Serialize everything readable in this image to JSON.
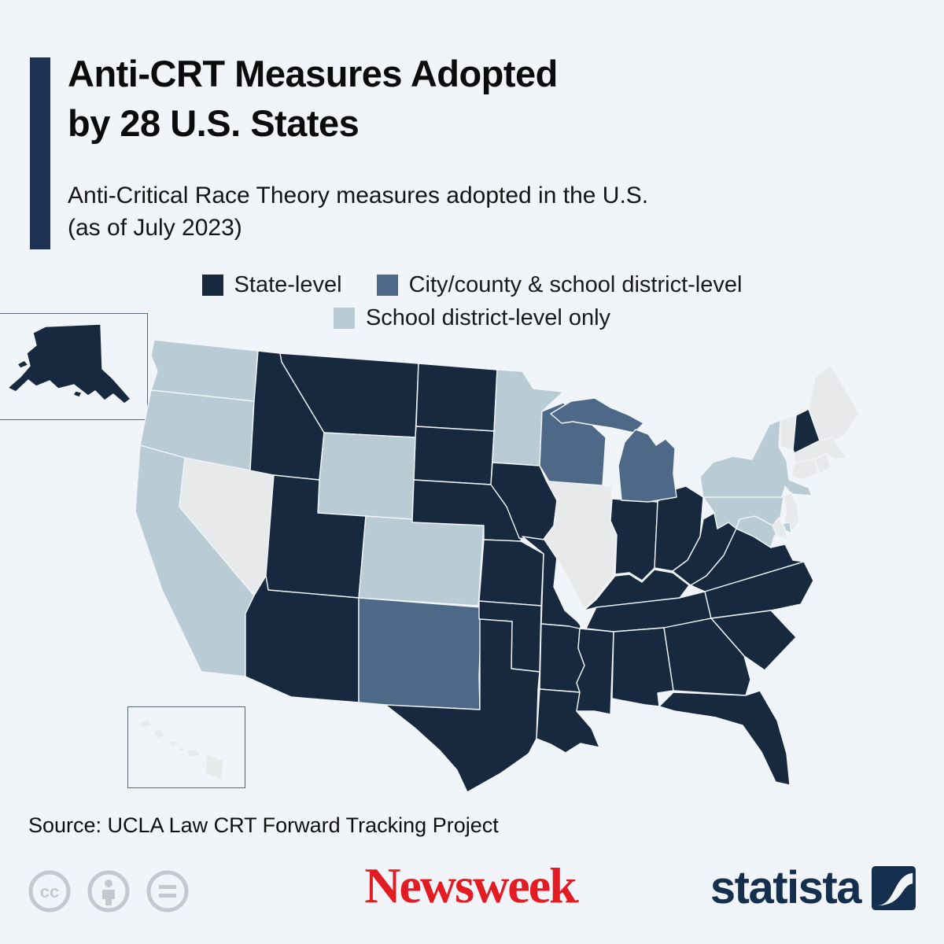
{
  "header": {
    "title_line1": "Anti-CRT Measures Adopted",
    "title_line2": "by 28 U.S. States",
    "subtitle_line1": "Anti-Critical Race Theory measures adopted in the U.S.",
    "subtitle_line2": "(as of July 2023)"
  },
  "legend": {
    "items": [
      {
        "key": "state",
        "label": "State-level",
        "color": "#16293e"
      },
      {
        "key": "city",
        "label": "City/county & school district-level",
        "color": "#4e6987"
      },
      {
        "key": "district",
        "label": "School district-level only",
        "color": "#b9ccd5"
      }
    ]
  },
  "map": {
    "type": "choropleth",
    "region": "United States",
    "none_color": "#e8e9eb",
    "categories": {
      "state": [
        "AK",
        "ID",
        "MT",
        "ND",
        "SD",
        "NE",
        "KS",
        "OK",
        "TX",
        "UT",
        "AZ",
        "IA",
        "MO",
        "AR",
        "LA",
        "MS",
        "AL",
        "GA",
        "FL",
        "SC",
        "NC",
        "TN",
        "KY",
        "VA",
        "WV",
        "OH",
        "IN",
        "NH"
      ],
      "city": [
        "NM",
        "WI",
        "MI"
      ],
      "district": [
        "WA",
        "OR",
        "CA",
        "WY",
        "CO",
        "MN",
        "NY",
        "PA",
        "MD"
      ],
      "none": [
        "NV",
        "IL",
        "NJ",
        "DE",
        "VT",
        "ME",
        "MA",
        "CT",
        "RI",
        "HI"
      ]
    }
  },
  "source": {
    "text": "Source: UCLA Law CRT Forward Tracking Project"
  },
  "footer": {
    "newsweek": "Newsweek",
    "statista": "statista",
    "cc_icons": [
      "cc",
      "attribution",
      "no-derivatives"
    ],
    "colors": {
      "newsweek_red": "#e31b23",
      "statista_navy": "#15304e",
      "cc_gray": "#c3c9d1"
    }
  }
}
